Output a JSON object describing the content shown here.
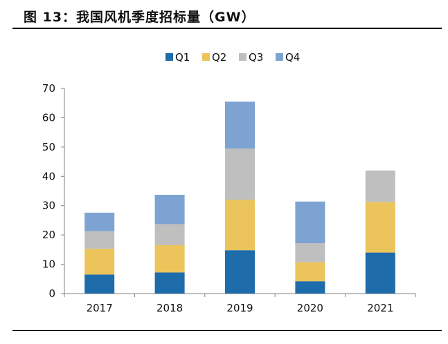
{
  "figure": {
    "title": "图 13：我国风机季度招标量（GW）"
  },
  "chart_data": {
    "type": "bar",
    "stacked": true,
    "categories": [
      "2017",
      "2018",
      "2019",
      "2020",
      "2021"
    ],
    "series": [
      {
        "name": "Q1",
        "color": "#1f6cab",
        "values": [
          6.5,
          7.2,
          14.8,
          4.2,
          14.0
        ]
      },
      {
        "name": "Q2",
        "color": "#ebc55b",
        "values": [
          8.8,
          9.3,
          17.2,
          6.5,
          17.2
        ]
      },
      {
        "name": "Q3",
        "color": "#bfbfbf",
        "values": [
          6.0,
          7.2,
          17.5,
          6.5,
          10.8
        ]
      },
      {
        "name": "Q4",
        "color": "#7da3d3",
        "values": [
          6.3,
          10.0,
          16.0,
          14.2,
          0
        ]
      }
    ],
    "ylim": [
      0,
      70
    ],
    "yticks": [
      "0",
      "10",
      "20",
      "30",
      "40",
      "50",
      "60",
      "70"
    ],
    "legend_position": "top-center",
    "grid": false
  }
}
